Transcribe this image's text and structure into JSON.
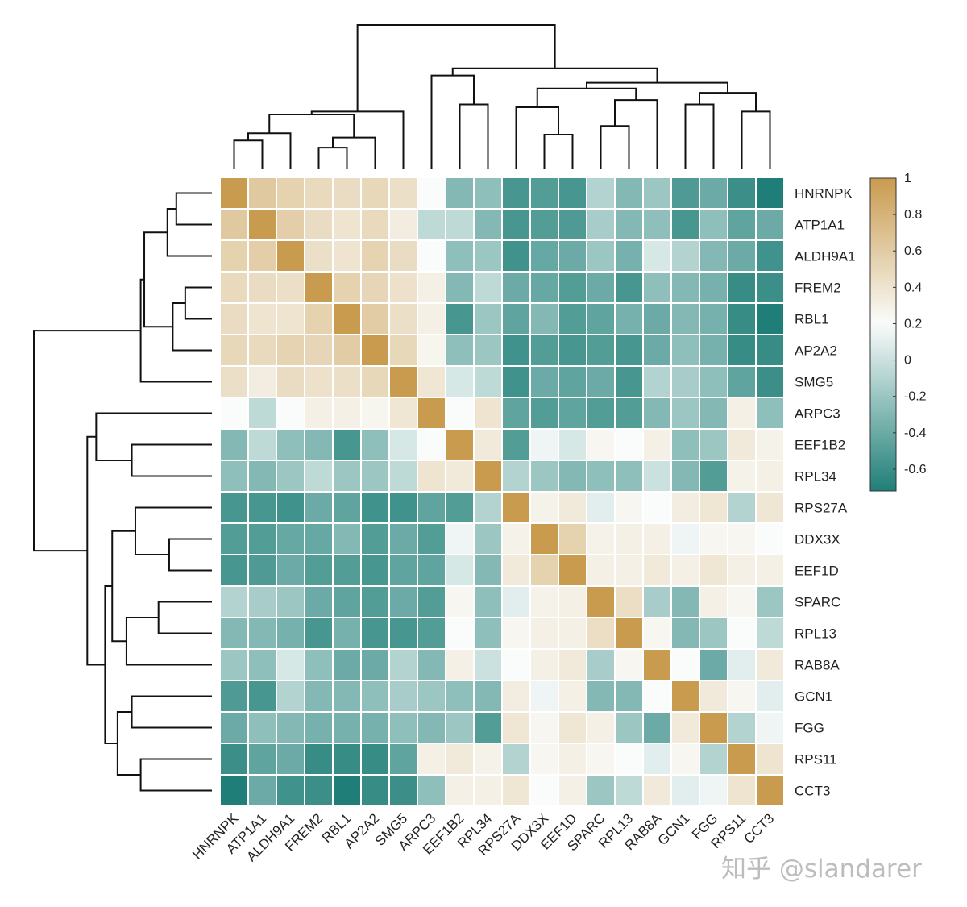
{
  "chart_data": {
    "type": "heatmap",
    "title": "",
    "labels": [
      "HNRNPK",
      "ATP1A1",
      "ALDH9A1",
      "FREM2",
      "RBL1",
      "AP2A2",
      "SMG5",
      "ARPC3",
      "EEF1B2",
      "RPL34",
      "RPS27A",
      "DDX3X",
      "EEF1D",
      "SPARC",
      "RPL13",
      "RAB8A",
      "GCN1",
      "FGG",
      "RPS11",
      "CCT3"
    ],
    "matrix": [
      [
        1.0,
        0.62,
        0.55,
        0.48,
        0.46,
        0.5,
        0.44,
        0.2,
        -0.3,
        -0.25,
        -0.55,
        -0.5,
        -0.55,
        -0.1,
        -0.3,
        -0.2,
        -0.52,
        -0.4,
        -0.6,
        -0.72
      ],
      [
        0.62,
        1.0,
        0.58,
        0.46,
        0.4,
        0.48,
        0.32,
        -0.05,
        -0.05,
        -0.3,
        -0.55,
        -0.5,
        -0.52,
        -0.15,
        -0.3,
        -0.25,
        -0.55,
        -0.25,
        -0.45,
        -0.4
      ],
      [
        0.55,
        0.58,
        1.0,
        0.44,
        0.4,
        0.54,
        0.46,
        0.2,
        -0.25,
        -0.2,
        -0.58,
        -0.42,
        -0.4,
        -0.2,
        -0.35,
        0.05,
        -0.1,
        -0.3,
        -0.4,
        -0.58
      ],
      [
        0.48,
        0.46,
        0.44,
        1.0,
        0.55,
        0.52,
        0.42,
        0.3,
        -0.3,
        -0.05,
        -0.4,
        -0.42,
        -0.5,
        -0.4,
        -0.55,
        -0.25,
        -0.3,
        -0.35,
        -0.62,
        -0.6
      ],
      [
        0.46,
        0.4,
        0.4,
        0.55,
        1.0,
        0.6,
        0.44,
        0.3,
        -0.55,
        -0.2,
        -0.45,
        -0.3,
        -0.5,
        -0.45,
        -0.35,
        -0.4,
        -0.3,
        -0.35,
        -0.62,
        -0.72
      ],
      [
        0.5,
        0.48,
        0.54,
        0.52,
        0.6,
        1.0,
        0.5,
        0.26,
        -0.25,
        -0.2,
        -0.58,
        -0.5,
        -0.55,
        -0.5,
        -0.55,
        -0.4,
        -0.25,
        -0.35,
        -0.62,
        -0.62
      ],
      [
        0.44,
        0.32,
        0.46,
        0.42,
        0.44,
        0.5,
        1.0,
        0.38,
        0.05,
        -0.05,
        -0.58,
        -0.4,
        -0.45,
        -0.4,
        -0.55,
        -0.1,
        -0.15,
        -0.25,
        -0.45,
        -0.6
      ],
      [
        0.2,
        -0.05,
        0.2,
        0.3,
        0.3,
        0.26,
        0.38,
        1.0,
        0.2,
        0.4,
        -0.45,
        -0.5,
        -0.45,
        -0.5,
        -0.5,
        -0.3,
        -0.2,
        -0.3,
        0.3,
        -0.25
      ],
      [
        -0.3,
        -0.05,
        -0.25,
        -0.3,
        -0.55,
        -0.25,
        0.05,
        0.2,
        1.0,
        0.35,
        -0.5,
        0.15,
        0.05,
        0.25,
        0.2,
        0.3,
        -0.25,
        -0.2,
        0.35,
        0.28
      ],
      [
        -0.25,
        -0.3,
        -0.2,
        -0.05,
        -0.2,
        -0.2,
        -0.05,
        0.4,
        0.35,
        1.0,
        -0.1,
        -0.2,
        -0.3,
        -0.25,
        -0.25,
        0.0,
        -0.3,
        -0.5,
        0.28,
        0.3
      ],
      [
        -0.55,
        -0.55,
        -0.58,
        -0.4,
        -0.45,
        -0.58,
        -0.58,
        -0.45,
        -0.5,
        -0.1,
        1.0,
        0.28,
        0.35,
        0.1,
        0.25,
        0.2,
        0.32,
        0.38,
        -0.1,
        0.38
      ],
      [
        -0.5,
        -0.5,
        -0.42,
        -0.42,
        -0.3,
        -0.5,
        -0.4,
        -0.5,
        0.15,
        -0.2,
        0.28,
        1.0,
        0.55,
        0.28,
        0.3,
        0.3,
        0.15,
        0.25,
        0.25,
        0.2
      ],
      [
        -0.55,
        -0.52,
        -0.4,
        -0.5,
        -0.5,
        -0.55,
        -0.45,
        -0.45,
        0.05,
        -0.3,
        0.35,
        0.55,
        1.0,
        0.3,
        0.3,
        0.35,
        0.3,
        0.38,
        0.3,
        0.3
      ],
      [
        -0.1,
        -0.15,
        -0.2,
        -0.4,
        -0.45,
        -0.5,
        -0.4,
        -0.5,
        0.25,
        -0.25,
        0.1,
        0.28,
        0.3,
        1.0,
        0.45,
        -0.15,
        -0.3,
        0.3,
        0.25,
        -0.2
      ],
      [
        -0.3,
        -0.3,
        -0.35,
        -0.55,
        -0.35,
        -0.55,
        -0.55,
        -0.5,
        0.2,
        -0.25,
        0.25,
        0.3,
        0.3,
        0.45,
        1.0,
        0.25,
        -0.3,
        -0.2,
        0.2,
        -0.05
      ],
      [
        -0.2,
        -0.25,
        0.05,
        -0.25,
        -0.4,
        -0.4,
        -0.1,
        -0.3,
        0.3,
        0.0,
        0.2,
        0.3,
        0.35,
        -0.15,
        0.25,
        1.0,
        0.2,
        -0.4,
        0.1,
        0.35
      ],
      [
        -0.52,
        -0.55,
        -0.1,
        -0.3,
        -0.3,
        -0.25,
        -0.15,
        -0.2,
        -0.25,
        -0.3,
        0.32,
        0.15,
        0.3,
        -0.3,
        -0.3,
        0.2,
        1.0,
        0.35,
        0.25,
        0.1
      ],
      [
        -0.4,
        -0.25,
        -0.3,
        -0.35,
        -0.35,
        -0.35,
        -0.25,
        -0.3,
        -0.2,
        -0.5,
        0.38,
        0.25,
        0.38,
        0.3,
        -0.2,
        -0.4,
        0.35,
        1.0,
        -0.1,
        0.15
      ],
      [
        -0.6,
        -0.45,
        -0.4,
        -0.62,
        -0.62,
        -0.62,
        -0.45,
        0.3,
        0.35,
        0.28,
        -0.1,
        0.25,
        0.3,
        0.25,
        0.2,
        0.1,
        0.25,
        -0.1,
        1.0,
        0.4
      ],
      [
        -0.72,
        -0.4,
        -0.58,
        -0.6,
        -0.72,
        -0.62,
        -0.6,
        -0.25,
        0.3,
        0.3,
        0.38,
        0.2,
        0.3,
        -0.2,
        -0.05,
        0.35,
        0.1,
        0.15,
        0.4,
        1.0
      ]
    ],
    "colorbar": {
      "min": -0.72,
      "max": 1.0,
      "ticks": [
        1,
        0.8,
        0.6,
        0.4,
        0.2,
        0,
        -0.2,
        -0.4,
        -0.6
      ],
      "colors": {
        "low": "#1f7f78",
        "mid": "#fafcfb",
        "high": "#c99b4e"
      },
      "mid_value": 0.2
    },
    "row_dendrogram": "hierarchical clustering of rows",
    "col_dendrogram": "hierarchical clustering of columns"
  },
  "watermark": "知乎 @slandarer"
}
